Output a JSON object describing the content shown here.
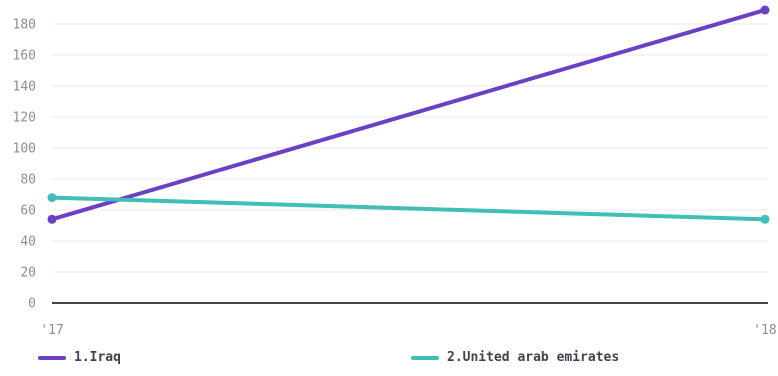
{
  "chart_data": {
    "type": "line",
    "x": [
      "'17",
      "'18"
    ],
    "ylim": [
      0,
      190
    ],
    "yticks": [
      0,
      20,
      40,
      60,
      80,
      100,
      120,
      140,
      160,
      180
    ],
    "series": [
      {
        "name": "1.Iraq",
        "color": "#6c3fc4",
        "values": [
          54,
          189
        ]
      },
      {
        "name": "2.United arab emirates",
        "color": "#3fbfb5",
        "values": [
          68,
          54
        ]
      }
    ],
    "grid": true,
    "legend": "bottom"
  }
}
